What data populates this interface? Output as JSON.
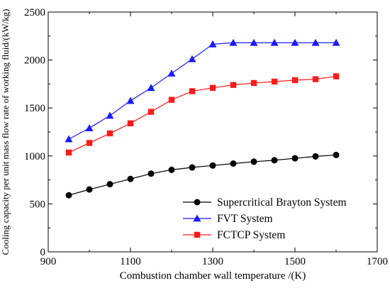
{
  "chart_data": {
    "type": "line",
    "title": "",
    "xlabel": "Combustion chamber wall temperature /(K)",
    "ylabel": "Cooling capacity per unit mass flow rate of working fluid/(kW/kg)",
    "xlim": [
      900,
      1700
    ],
    "ylim": [
      0,
      2500
    ],
    "xticks": [
      900,
      1100,
      1300,
      1500,
      1700
    ],
    "yticks": [
      0,
      500,
      1000,
      1500,
      2000,
      2500
    ],
    "grid": false,
    "legend_position": "bottom-right",
    "x": [
      950,
      1000,
      1050,
      1100,
      1150,
      1200,
      1250,
      1300,
      1350,
      1400,
      1450,
      1500,
      1550,
      1600
    ],
    "series": [
      {
        "name": "Supercritical Brayton System",
        "color": "#000000",
        "marker": "circle",
        "values": [
          590,
          650,
          705,
          760,
          815,
          855,
          880,
          900,
          920,
          940,
          955,
          975,
          995,
          1010
        ]
      },
      {
        "name": "FVT System",
        "color": "#1a1aff",
        "marker": "triangle",
        "values": [
          1175,
          1290,
          1420,
          1575,
          1710,
          1860,
          2010,
          2165,
          2180,
          2180,
          2180,
          2180,
          2180,
          2180
        ]
      },
      {
        "name": "FCTCP System",
        "color": "#ff1a1a",
        "marker": "square",
        "values": [
          1035,
          1135,
          1235,
          1340,
          1460,
          1585,
          1675,
          1710,
          1740,
          1760,
          1775,
          1790,
          1800,
          1830
        ]
      }
    ]
  }
}
